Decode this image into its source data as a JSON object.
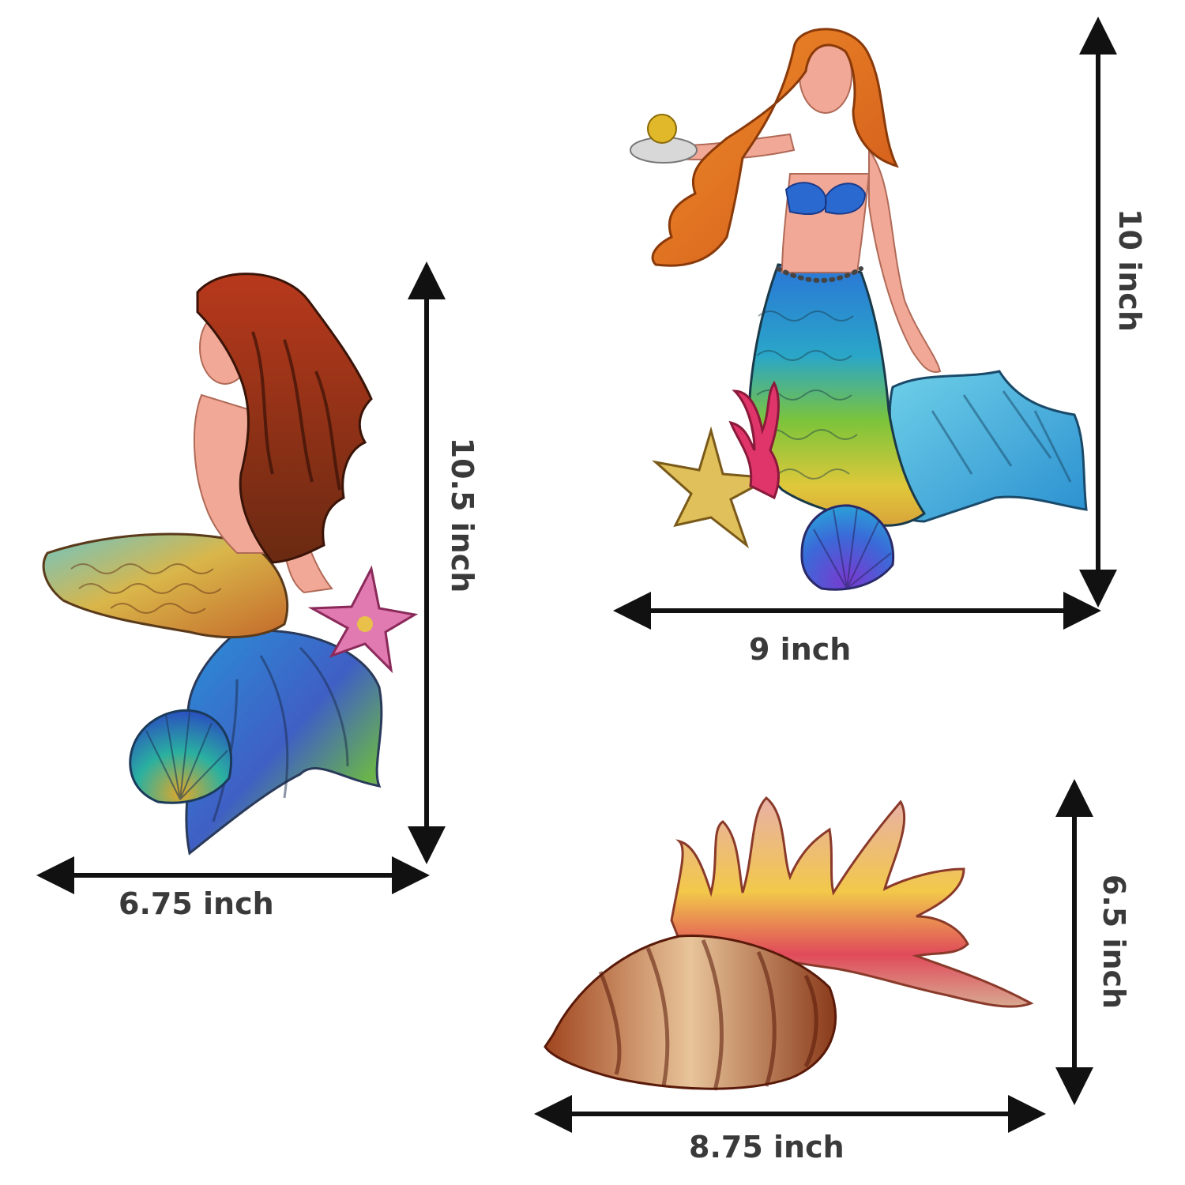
{
  "items": [
    {
      "name": "Sitting mermaid",
      "width_label": "6.75 inch",
      "height_label": "10.5 inch"
    },
    {
      "name": "Standing mermaid",
      "width_label": "9 inch",
      "height_label": "10 inch"
    },
    {
      "name": "Conch shell",
      "width_label": "8.75 inch",
      "height_label": "6.5 inch"
    }
  ],
  "colors": {
    "background": "#ffffff",
    "arrow": "#111111",
    "label": "#3a3a3a"
  }
}
